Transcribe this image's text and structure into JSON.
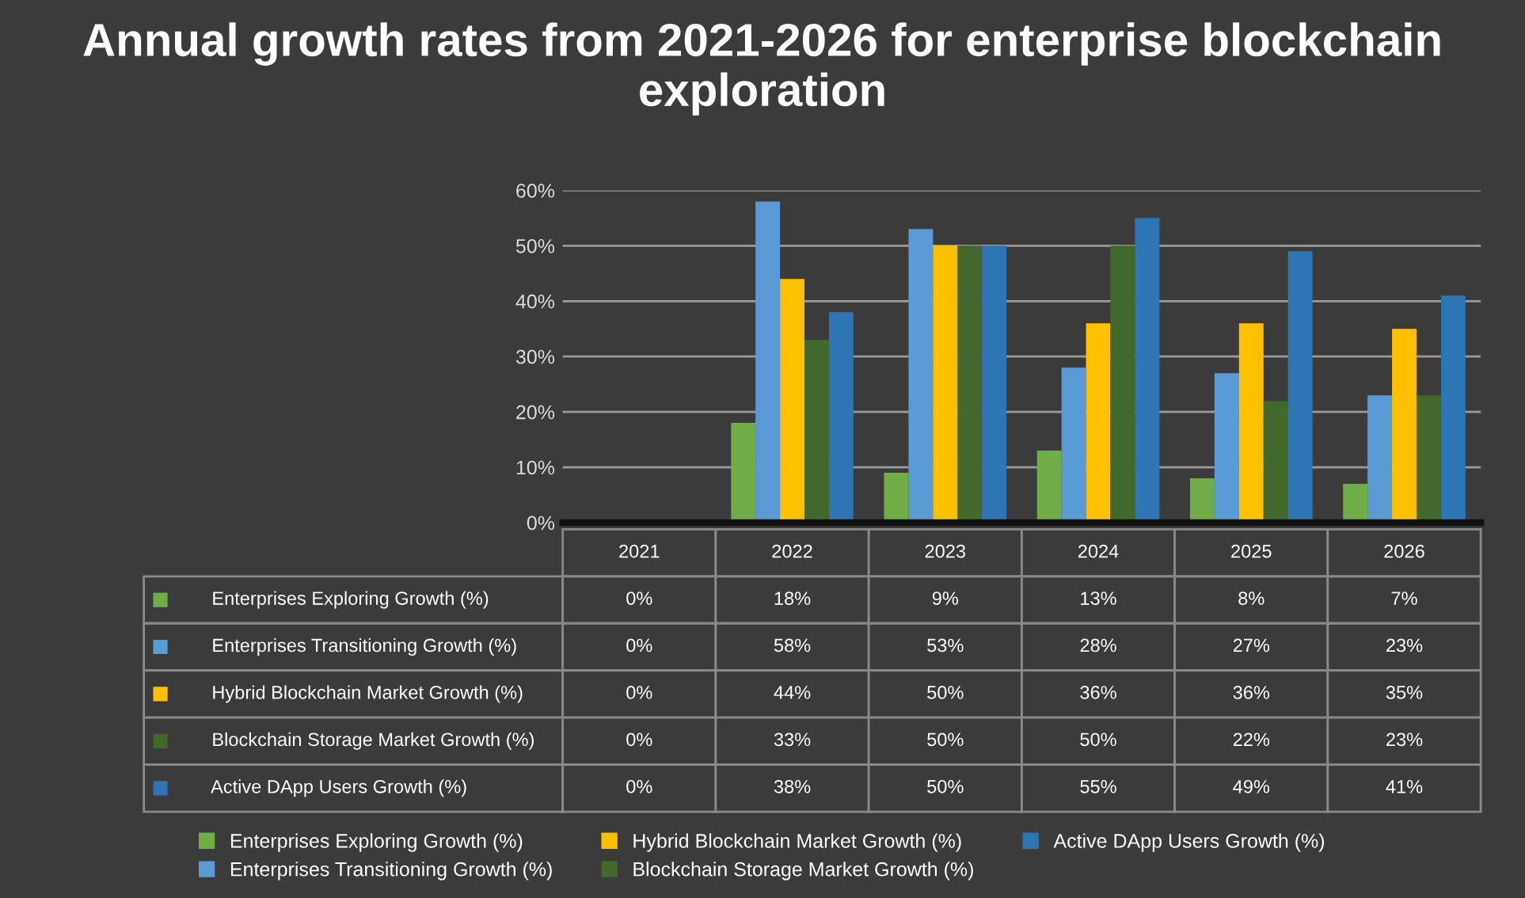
{
  "chart_data": {
    "type": "bar",
    "title": "Annual growth rates from 2021-2026 for enterprise blockchain exploration",
    "categories": [
      "2021",
      "2022",
      "2023",
      "2024",
      "2025",
      "2026"
    ],
    "series": [
      {
        "name": "Enterprises Exploring Growth (%)",
        "color": "#70ad47",
        "values": [
          0,
          18,
          9,
          13,
          8,
          7
        ],
        "value_labels": [
          "0%",
          "18%",
          "9%",
          "13%",
          "8%",
          "7%"
        ]
      },
      {
        "name": "Enterprises Transitioning Growth (%)",
        "color": "#5b9bd5",
        "values": [
          0,
          58,
          53,
          28,
          27,
          23
        ],
        "value_labels": [
          "0%",
          "58%",
          "53%",
          "28%",
          "27%",
          "23%"
        ]
      },
      {
        "name": "Hybrid Blockchain Market Growth (%)",
        "color": "#ffc000",
        "values": [
          0,
          44,
          50,
          36,
          36,
          35
        ],
        "value_labels": [
          "0%",
          "44%",
          "50%",
          "36%",
          "36%",
          "35%"
        ]
      },
      {
        "name": "Blockchain Storage Market Growth (%)",
        "color": "#43682b",
        "values": [
          0,
          33,
          50,
          50,
          22,
          23
        ],
        "value_labels": [
          "0%",
          "33%",
          "50%",
          "50%",
          "22%",
          "23%"
        ]
      },
      {
        "name": "Active DApp Users Growth (%)",
        "color": "#2e75b6",
        "values": [
          0,
          38,
          50,
          55,
          49,
          41
        ],
        "value_labels": [
          "0%",
          "38%",
          "50%",
          "55%",
          "49%",
          "41%"
        ]
      }
    ],
    "ylim": [
      0,
      60
    ],
    "yticks": [
      {
        "value": 0,
        "label": "0%"
      },
      {
        "value": 10,
        "label": "10%"
      },
      {
        "value": 20,
        "label": "20%"
      },
      {
        "value": 30,
        "label": "30%"
      },
      {
        "value": 40,
        "label": "40%"
      },
      {
        "value": 50,
        "label": "50%"
      },
      {
        "value": 60,
        "label": "60%"
      }
    ],
    "grid": "y",
    "legend": "bottom"
  }
}
